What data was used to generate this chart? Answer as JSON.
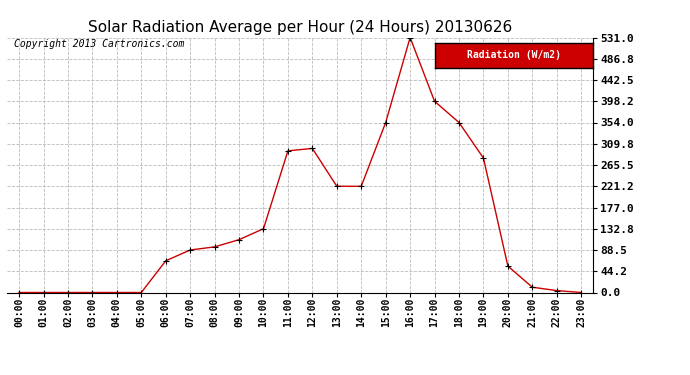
{
  "title": "Solar Radiation Average per Hour (24 Hours) 20130626",
  "copyright": "Copyright 2013 Cartronics.com",
  "legend_label": "Radiation (W/m2)",
  "hours": [
    "00:00",
    "01:00",
    "02:00",
    "03:00",
    "04:00",
    "05:00",
    "06:00",
    "07:00",
    "08:00",
    "09:00",
    "10:00",
    "11:00",
    "12:00",
    "13:00",
    "14:00",
    "15:00",
    "16:00",
    "17:00",
    "18:00",
    "19:00",
    "20:00",
    "21:00",
    "22:00",
    "23:00"
  ],
  "values": [
    0.0,
    0.0,
    0.0,
    0.0,
    0.0,
    0.0,
    66.0,
    88.5,
    95.0,
    110.0,
    132.8,
    295.0,
    300.0,
    221.2,
    221.2,
    354.0,
    531.0,
    398.2,
    354.0,
    280.0,
    55.0,
    11.0,
    4.0,
    0.0
  ],
  "line_color": "#cc0000",
  "marker": "+",
  "marker_color": "#000000",
  "bg_color": "#ffffff",
  "grid_color": "#bbbbbb",
  "ylim": [
    0.0,
    531.0
  ],
  "yticks": [
    0.0,
    44.2,
    88.5,
    132.8,
    177.0,
    221.2,
    265.5,
    309.8,
    354.0,
    398.2,
    442.5,
    486.8,
    531.0
  ],
  "legend_bg": "#cc0000",
  "legend_text_color": "#ffffff",
  "title_fontsize": 11,
  "copyright_fontsize": 7,
  "tick_fontsize": 7,
  "ytick_fontsize": 8
}
